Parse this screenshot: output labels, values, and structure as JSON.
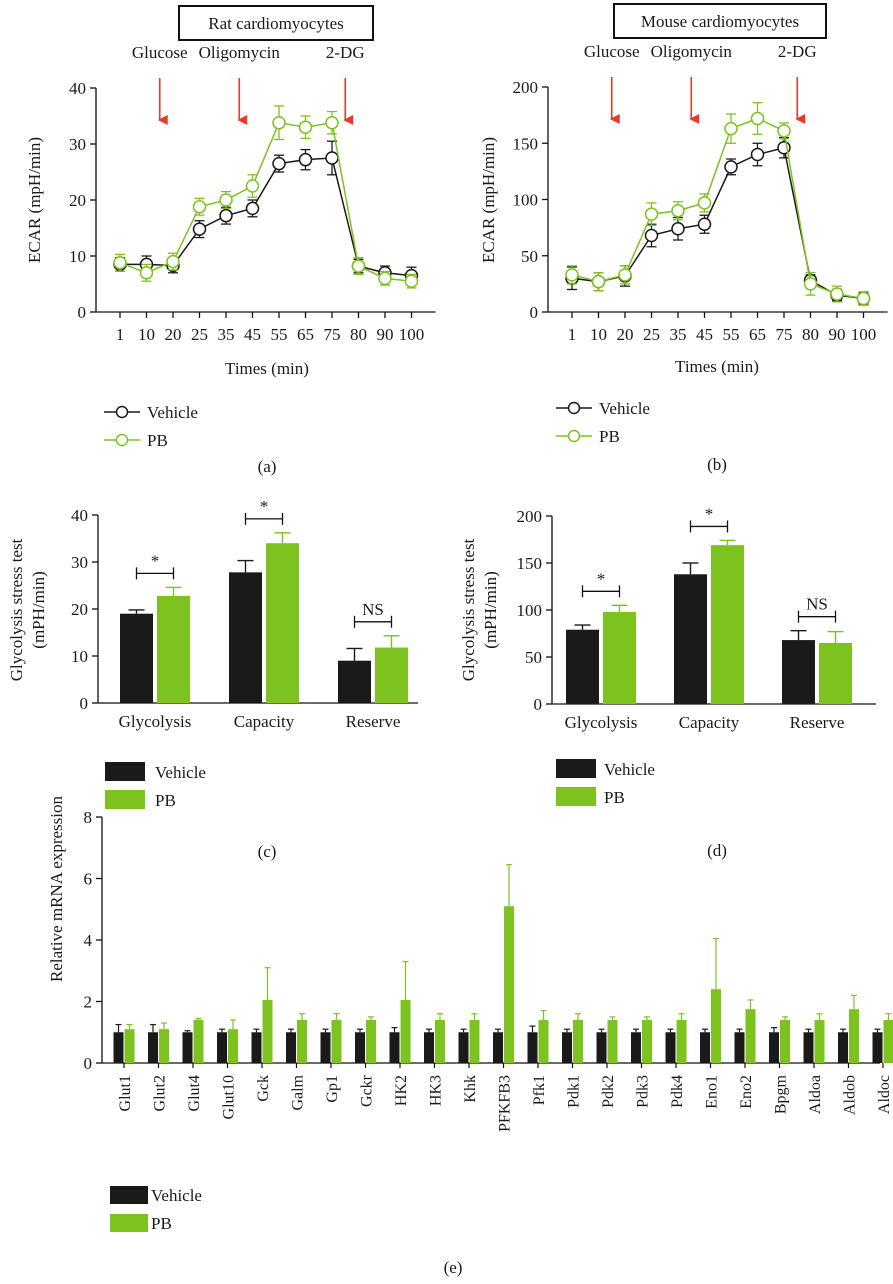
{
  "colors": {
    "vehicle": "#1a1a1a",
    "pb": "#7cc320",
    "arrow": "#e8392a"
  },
  "chart_data": [
    {
      "panel": "(a)",
      "type": "line",
      "title": "Rat cardiomyocytes",
      "xlabel": "Times (min)",
      "ylabel": "ECAR (mpH/min)",
      "ylim": [
        0,
        40
      ],
      "yticks": [
        0,
        10,
        20,
        30,
        40
      ],
      "categories": [
        "1",
        "10",
        "20",
        "25",
        "35",
        "45",
        "55",
        "65",
        "75",
        "80",
        "90",
        "100"
      ],
      "annotations": [
        {
          "label": "Glucose",
          "between": [
            "10",
            "20"
          ]
        },
        {
          "label": "Oligomycin",
          "between": [
            "35",
            "45"
          ]
        },
        {
          "label": "2-DG",
          "between": [
            "75",
            "80"
          ]
        }
      ],
      "legend_position": "bottom-left",
      "series": [
        {
          "name": "Vehicle",
          "values": [
            8.5,
            8.5,
            8.3,
            14.8,
            17.2,
            18.5,
            26.5,
            27.2,
            27.5,
            8.2,
            7.0,
            6.5
          ],
          "errors": [
            1.2,
            1.5,
            1.3,
            1.5,
            1.5,
            1.5,
            1.5,
            1.8,
            3.0,
            1.2,
            1.2,
            1.5
          ]
        },
        {
          "name": "PB",
          "values": [
            8.8,
            7.0,
            9.0,
            18.8,
            20.0,
            22.5,
            33.8,
            33.0,
            33.8,
            8.2,
            6.0,
            5.5
          ],
          "errors": [
            1.5,
            1.5,
            1.5,
            1.5,
            1.5,
            2.0,
            3.0,
            2.0,
            2.0,
            1.5,
            1.2,
            1.2
          ]
        }
      ]
    },
    {
      "panel": "(b)",
      "type": "line",
      "title": "Mouse cardiomyocytes",
      "xlabel": "Times (min)",
      "ylabel": "ECAR (mpH/min)",
      "ylim": [
        0,
        200
      ],
      "yticks": [
        0,
        50,
        100,
        150,
        200
      ],
      "categories": [
        "1",
        "10",
        "20",
        "25",
        "35",
        "45",
        "55",
        "65",
        "75",
        "80",
        "90",
        "100"
      ],
      "annotations": [
        {
          "label": "Glucose",
          "between": [
            "10",
            "20"
          ]
        },
        {
          "label": "Oligomycin",
          "between": [
            "35",
            "45"
          ]
        },
        {
          "label": "2-DG",
          "between": [
            "75",
            "80"
          ]
        }
      ],
      "legend_position": "bottom-left",
      "series": [
        {
          "name": "Vehicle",
          "values": [
            30,
            27,
            32,
            68,
            74,
            78,
            129,
            140,
            146,
            28,
            15,
            12
          ],
          "errors": [
            10,
            8,
            9,
            10,
            10,
            8,
            7,
            10,
            9,
            5,
            5,
            5
          ]
        },
        {
          "name": "PB",
          "values": [
            33,
            27,
            33,
            87,
            90,
            97,
            163,
            172,
            161,
            25,
            16,
            12
          ],
          "errors": [
            8,
            8,
            8,
            10,
            8,
            8,
            13,
            14,
            7,
            10,
            7,
            6
          ]
        }
      ]
    },
    {
      "panel": "(c)",
      "type": "bar",
      "xlabel": "",
      "ylabel": "Glycolysis stress test (mPH/min)",
      "ylim": [
        0,
        40
      ],
      "yticks": [
        0,
        10,
        20,
        30,
        40
      ],
      "categories": [
        "Glycolysis",
        "Capacity",
        "Reserve"
      ],
      "significance": [
        "*",
        "*",
        "NS"
      ],
      "legend_position": "bottom-left",
      "series": [
        {
          "name": "Vehicle",
          "values": [
            19.0,
            27.8,
            9.0
          ],
          "errors": [
            0.8,
            2.5,
            2.6
          ]
        },
        {
          "name": "PB",
          "values": [
            22.8,
            34.0,
            11.8
          ],
          "errors": [
            1.8,
            2.2,
            2.5
          ]
        }
      ]
    },
    {
      "panel": "(d)",
      "type": "bar",
      "xlabel": "",
      "ylabel": "Glycolysis stress test (mPH/min)",
      "ylim": [
        0,
        200
      ],
      "yticks": [
        0,
        50,
        100,
        150,
        200
      ],
      "categories": [
        "Glycolysis",
        "Capacity",
        "Reserve"
      ],
      "significance": [
        "*",
        "*",
        "NS"
      ],
      "legend_position": "bottom-left",
      "series": [
        {
          "name": "Vehicle",
          "values": [
            79,
            138,
            68
          ],
          "errors": [
            5,
            12,
            10
          ]
        },
        {
          "name": "PB",
          "values": [
            98,
            169,
            65
          ],
          "errors": [
            7,
            5,
            12
          ]
        }
      ]
    },
    {
      "panel": "(e)",
      "type": "bar",
      "xlabel": "",
      "ylabel": "Relative mRNA expression",
      "ylim": [
        0,
        8
      ],
      "yticks": [
        0,
        2,
        4,
        6,
        8
      ],
      "categories": [
        "Glut1",
        "Glut2",
        "Glut4",
        "Glut10",
        "Gck",
        "Galm",
        "Gp1",
        "Gckr",
        "HK2",
        "HK3",
        "Khk",
        "PFKFB3",
        "Pfk1",
        "Pdk1",
        "Pdk2",
        "Pdk3",
        "Pdk4",
        "Eno1",
        "Eno2",
        "Bpgm",
        "Aldoa",
        "Aldob",
        "Aldoc"
      ],
      "legend_position": "bottom-left",
      "series": [
        {
          "name": "Vehicle",
          "values": [
            1.0,
            1.0,
            1.0,
            1.0,
            1.0,
            1.0,
            1.0,
            1.0,
            1.0,
            1.0,
            1.0,
            1.0,
            1.0,
            1.0,
            1.0,
            1.0,
            1.0,
            1.0,
            1.0,
            1.0,
            1.0,
            1.0,
            1.0
          ],
          "errors": [
            0.25,
            0.25,
            0.05,
            0.1,
            0.1,
            0.1,
            0.1,
            0.1,
            0.15,
            0.1,
            0.1,
            0.1,
            0.2,
            0.1,
            0.1,
            0.1,
            0.1,
            0.1,
            0.1,
            0.15,
            0.1,
            0.1,
            0.1
          ]
        },
        {
          "name": "PB",
          "values": [
            1.1,
            1.1,
            1.4,
            1.1,
            2.05,
            1.4,
            1.4,
            1.4,
            2.05,
            1.4,
            1.4,
            5.1,
            1.4,
            1.4,
            1.4,
            1.4,
            1.4,
            2.4,
            1.75,
            1.4,
            1.4,
            1.75,
            1.4
          ],
          "errors": [
            0.15,
            0.2,
            0.05,
            0.3,
            1.05,
            0.2,
            0.2,
            0.1,
            1.25,
            0.2,
            0.2,
            1.35,
            0.3,
            0.2,
            0.1,
            0.1,
            0.2,
            1.65,
            0.3,
            0.1,
            0.2,
            0.45,
            0.2
          ]
        }
      ]
    }
  ],
  "legend": {
    "vehicle_label": "Vehicle",
    "pb_label": "PB"
  },
  "panel_labels": {
    "a": "(a)",
    "b": "(b)",
    "c": "(c)",
    "d": "(d)",
    "e": "(e)"
  }
}
